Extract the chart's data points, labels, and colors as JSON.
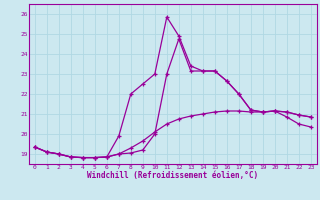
{
  "xlabel": "Windchill (Refroidissement éolien,°C)",
  "xlim": [
    -0.5,
    23.5
  ],
  "ylim": [
    18.5,
    26.5
  ],
  "xticks": [
    0,
    1,
    2,
    3,
    4,
    5,
    6,
    7,
    8,
    9,
    10,
    11,
    12,
    13,
    14,
    15,
    16,
    17,
    18,
    19,
    20,
    21,
    22,
    23
  ],
  "yticks": [
    19,
    20,
    21,
    22,
    23,
    24,
    25,
    26
  ],
  "line_color": "#990099",
  "bg_color": "#cce8f0",
  "grid_color": "#b0d8e4",
  "line1_x": [
    0,
    1,
    2,
    3,
    4,
    5,
    6,
    7,
    8,
    9,
    10,
    11,
    12,
    13,
    14,
    15,
    16,
    17,
    18,
    19,
    20,
    21,
    22,
    23
  ],
  "line1_y": [
    19.35,
    19.1,
    19.0,
    18.85,
    18.82,
    18.82,
    18.85,
    19.9,
    22.0,
    22.5,
    23.0,
    25.85,
    24.9,
    23.4,
    23.15,
    23.15,
    22.65,
    22.0,
    21.2,
    21.1,
    21.15,
    21.1,
    20.95,
    20.85
  ],
  "line2_x": [
    0,
    1,
    2,
    3,
    4,
    5,
    6,
    7,
    8,
    9,
    10,
    11,
    12,
    13,
    14,
    15,
    16,
    17,
    18,
    19,
    20,
    21,
    22,
    23
  ],
  "line2_y": [
    19.35,
    19.1,
    19.0,
    18.85,
    18.82,
    18.82,
    18.85,
    19.0,
    19.05,
    19.2,
    20.0,
    23.0,
    24.75,
    23.15,
    23.15,
    23.15,
    22.65,
    22.0,
    21.2,
    21.1,
    21.15,
    21.1,
    20.95,
    20.85
  ],
  "line3_x": [
    0,
    1,
    2,
    3,
    4,
    5,
    6,
    7,
    8,
    9,
    10,
    11,
    12,
    13,
    14,
    15,
    16,
    17,
    18,
    19,
    20,
    21,
    22,
    23
  ],
  "line3_y": [
    19.35,
    19.1,
    19.0,
    18.85,
    18.82,
    18.82,
    18.85,
    19.0,
    19.3,
    19.65,
    20.1,
    20.5,
    20.75,
    20.9,
    21.0,
    21.1,
    21.15,
    21.15,
    21.1,
    21.1,
    21.15,
    20.85,
    20.5,
    20.35
  ]
}
